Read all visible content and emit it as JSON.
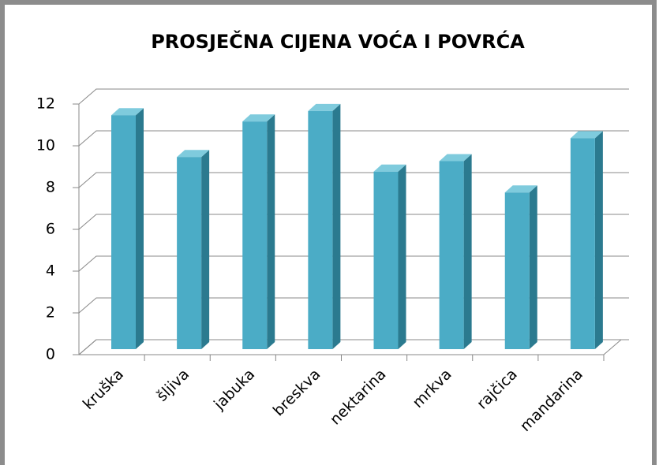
{
  "chart_data": {
    "type": "bar",
    "title": "PROSJEČNA CIJENA VOĆA I POVRĆA",
    "categories": [
      "kruška",
      "šljiva",
      "jabuka",
      "breskva",
      "nektarina",
      "mrkva",
      "rajčica",
      "mandarina"
    ],
    "values": [
      11.2,
      9.2,
      10.9,
      11.4,
      8.5,
      9.0,
      7.5,
      10.1
    ],
    "color": "#4bacc6",
    "ylim": [
      0,
      12
    ],
    "yticks": [
      0,
      2,
      4,
      6,
      8,
      10,
      12
    ],
    "grid": true
  }
}
